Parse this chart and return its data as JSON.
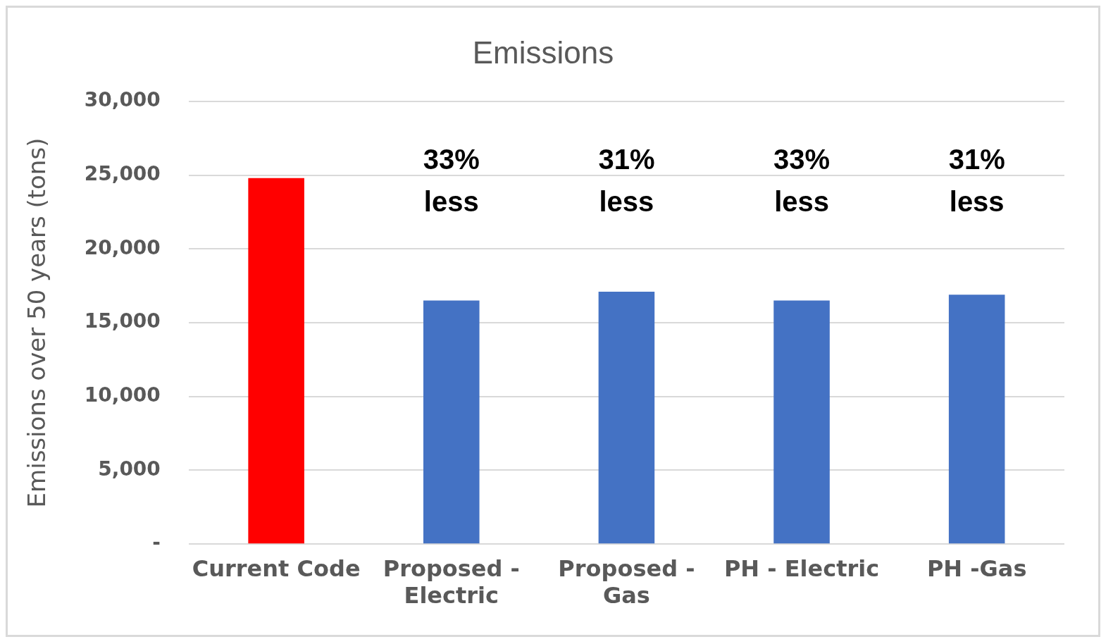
{
  "chart_data": {
    "type": "bar",
    "title": "Emissions",
    "ylabel": "Emissions over 50 years (tons)",
    "categories": [
      "Current Code",
      "Proposed - Electric",
      "Proposed - Gas",
      "PH - Electric",
      "PH -Gas"
    ],
    "values": [
      24800,
      16500,
      17100,
      16500,
      16900
    ],
    "colors": [
      "#ff0000",
      "#4472c4",
      "#4472c4",
      "#4472c4",
      "#4472c4"
    ],
    "ylim": [
      0,
      30000
    ],
    "yticks": [
      {
        "value": 0,
        "label": "-"
      },
      {
        "value": 5000,
        "label": "5,000"
      },
      {
        "value": 10000,
        "label": "10,000"
      },
      {
        "value": 15000,
        "label": "15,000"
      },
      {
        "value": 20000,
        "label": "20,000"
      },
      {
        "value": 25000,
        "label": "25,000"
      },
      {
        "value": 30000,
        "label": "30,000"
      }
    ],
    "grid": "y",
    "annotations": [
      "33% less",
      "31% less",
      "33% less",
      "31% less"
    ]
  }
}
